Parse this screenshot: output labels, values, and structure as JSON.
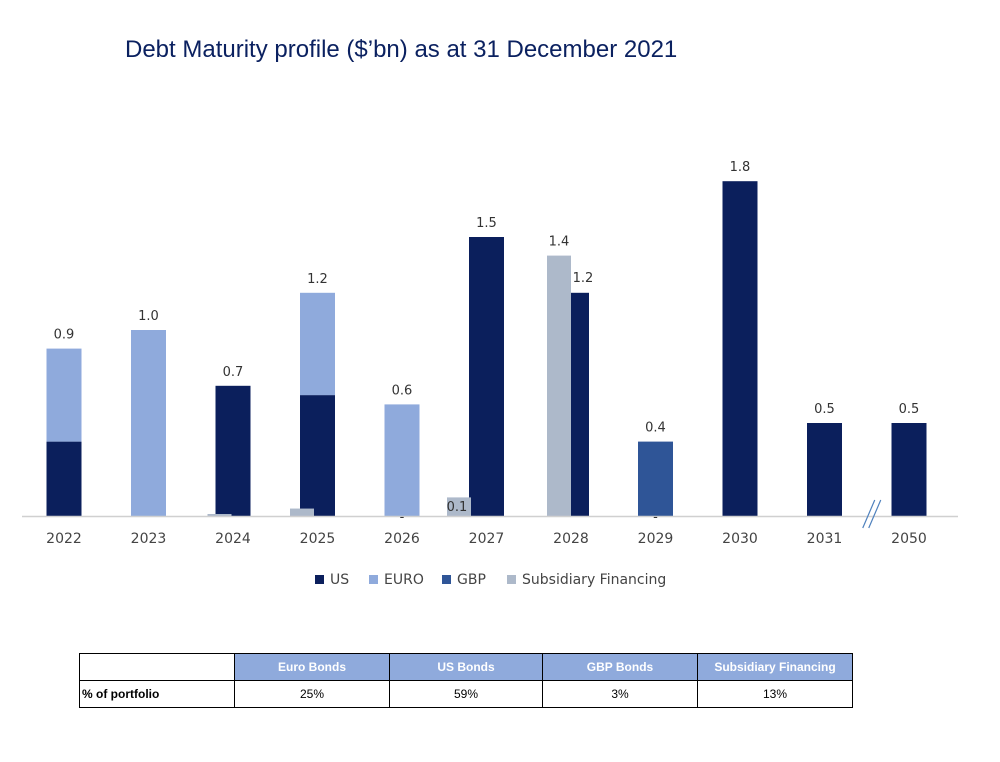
{
  "page": {
    "title": "Debt Maturity profile ($’bn) as at 31 December 2021"
  },
  "chart_data": {
    "type": "bar",
    "title": "Debt Maturity profile ($’bn) as at 31 December 2021",
    "categories": [
      "2022",
      "2023",
      "2024",
      "2025",
      "2026",
      "2027",
      "2028",
      "2029",
      "2030",
      "2031",
      "2050"
    ],
    "series": [
      {
        "name": "US",
        "color": "#0b1f5c",
        "values": [
          0.4,
          0,
          0.7,
          0.65,
          0,
          1.5,
          1.2,
          0,
          1.8,
          0.5,
          0.5
        ]
      },
      {
        "name": "EURO",
        "color": "#8faadc",
        "values": [
          0.5,
          1.0,
          0,
          0.55,
          0.6,
          0,
          0,
          0,
          0,
          0,
          0
        ]
      },
      {
        "name": "GBP",
        "color": "#2f5597",
        "values": [
          0,
          0,
          0,
          0,
          0,
          0,
          0,
          0.4,
          0,
          0,
          0
        ]
      },
      {
        "name": "Subsidiary Financing",
        "color": "#adb9ca",
        "values": [
          0,
          0,
          0.01,
          0.04,
          0,
          0.1,
          1.4,
          0,
          0,
          0,
          0
        ]
      }
    ],
    "data_labels": [
      {
        "category": "2022",
        "text": "0.9"
      },
      {
        "category": "2023",
        "text": "1.0"
      },
      {
        "category": "2024",
        "text": "0.7"
      },
      {
        "category": "2025",
        "text": "1.2"
      },
      {
        "category": "2026",
        "text": "0.6"
      },
      {
        "category": "2026",
        "text": "-",
        "kind": "dash"
      },
      {
        "category": "2027",
        "text": "1.5"
      },
      {
        "category": "2027",
        "text": "0.1",
        "kind": "subsidiary"
      },
      {
        "category": "2028",
        "text": "1.4",
        "kind": "subsidiary"
      },
      {
        "category": "2028",
        "text": "1.2",
        "kind": "us"
      },
      {
        "category": "2029",
        "text": "0.4"
      },
      {
        "category": "2029",
        "text": "-",
        "kind": "dash"
      },
      {
        "category": "2030",
        "text": "1.8"
      },
      {
        "category": "2031",
        "text": "0.5"
      },
      {
        "category": "2050",
        "text": "0.5"
      }
    ],
    "axis_break_after": "2031",
    "ylim": [
      0,
      2.0
    ],
    "xlabel": "",
    "ylabel": "",
    "grid": false,
    "legend_position": "bottom"
  },
  "table": {
    "headers": [
      "",
      "Euro Bonds",
      "US Bonds",
      "GBP Bonds",
      "Subsidiary Financing"
    ],
    "row_label": "% of portfolio",
    "values": [
      "25%",
      "59%",
      "3%",
      "13%"
    ]
  }
}
